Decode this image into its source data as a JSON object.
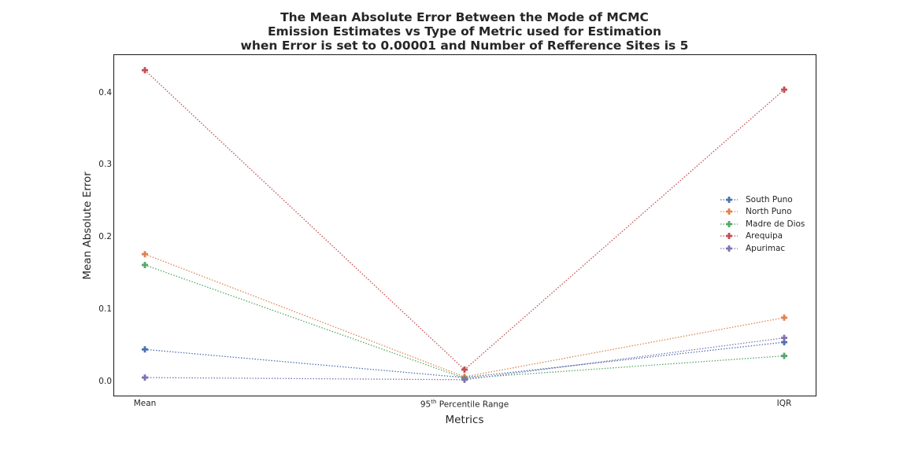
{
  "chart_data": {
    "type": "line",
    "title_lines": [
      "The Mean Absolute Error Between the Mode of MCMC",
      "Emission Estimates vs Type of Metric used for Estimation",
      "when Error is set to 0.00001 and Number of Refference Sites is 5"
    ],
    "xlabel": "Metrics",
    "ylabel": "Mean Absolute Error",
    "categories": [
      "Mean",
      "95th Percentile Range",
      "IQR"
    ],
    "category_display": {
      "pre": "95",
      "sup": "th",
      "post": " Percentile Range"
    },
    "ylim": [
      -0.02,
      0.452
    ],
    "yticks": [
      "0.0",
      "0.1",
      "0.2",
      "0.3",
      "0.4"
    ],
    "grid": false,
    "legend_position": "center-right",
    "marker": "plus",
    "line_style": "dotted",
    "series": [
      {
        "name": "South Puno",
        "color": "#4c72b0",
        "values": [
          0.044,
          0.005,
          0.054
        ]
      },
      {
        "name": "North Puno",
        "color": "#dd8452",
        "values": [
          0.176,
          0.006,
          0.088
        ]
      },
      {
        "name": "Madre de Dios",
        "color": "#55a868",
        "values": [
          0.161,
          0.004,
          0.035
        ]
      },
      {
        "name": "Arequipa",
        "color": "#c44e52",
        "values": [
          0.431,
          0.016,
          0.404
        ]
      },
      {
        "name": "Apurimac",
        "color": "#8172b3",
        "values": [
          0.005,
          0.002,
          0.06
        ]
      }
    ]
  }
}
